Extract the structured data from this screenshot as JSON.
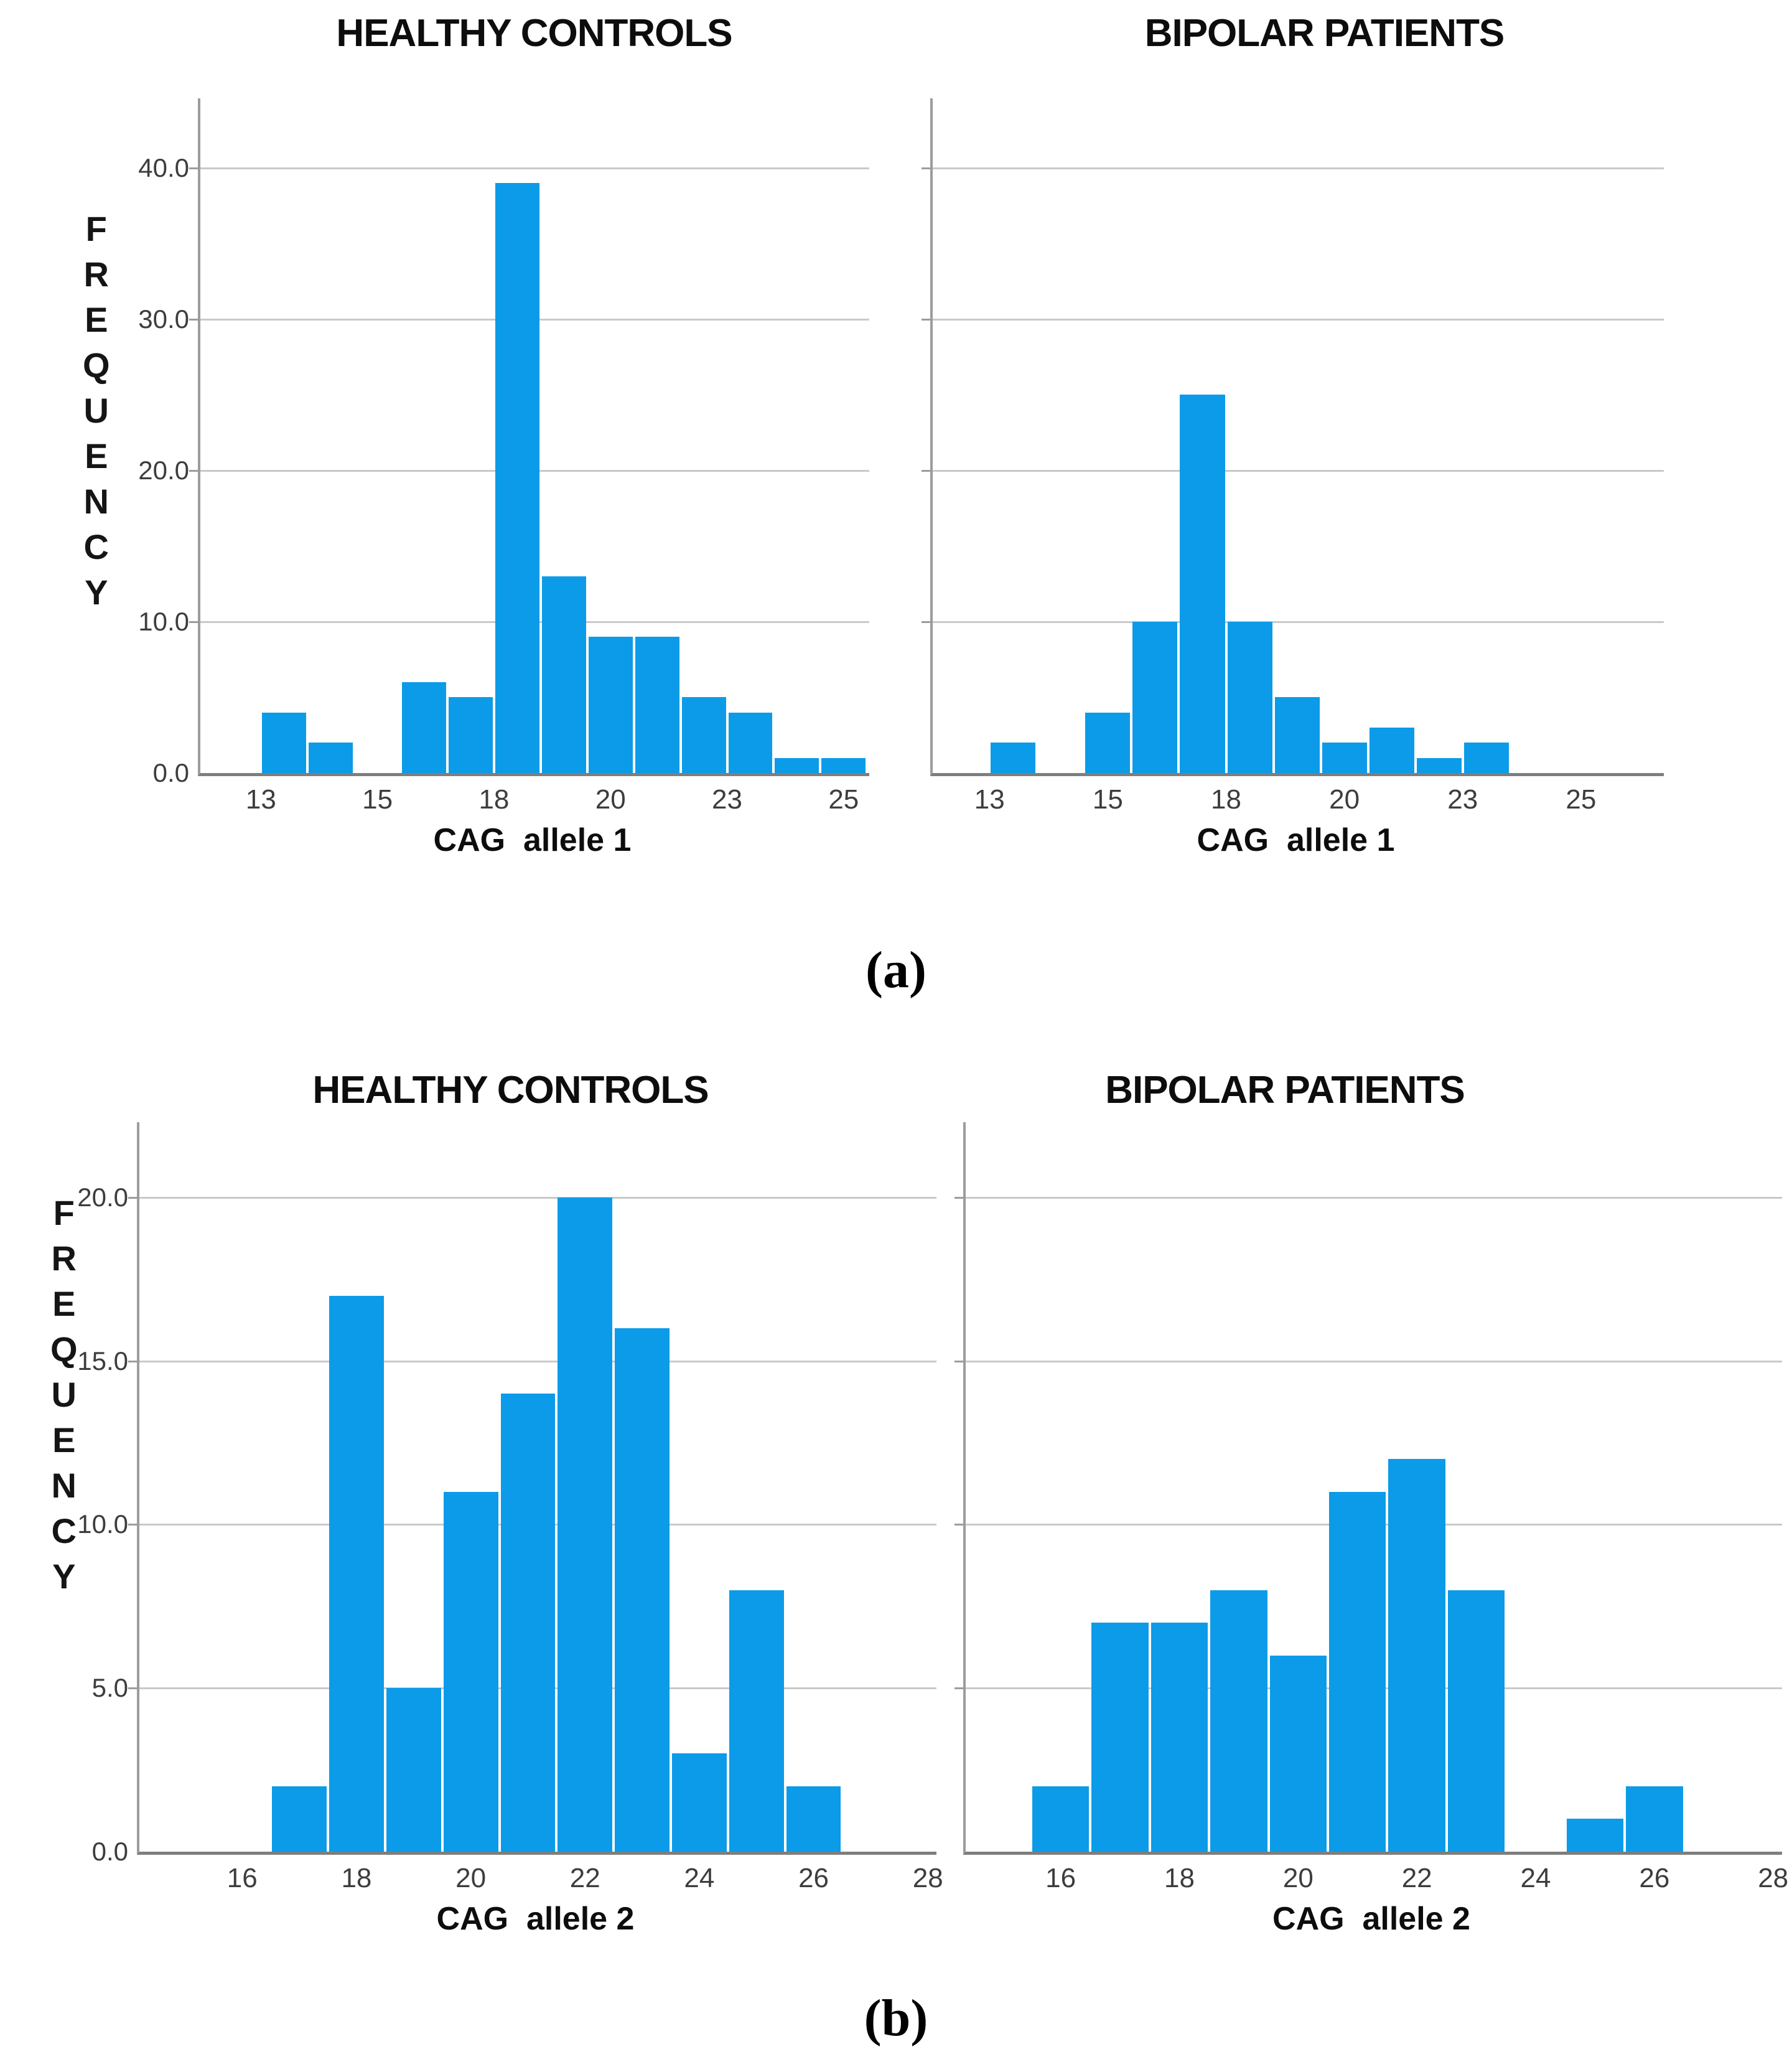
{
  "figure": {
    "captions": [
      "(a)",
      "(b)"
    ],
    "colors": {
      "bar": "#0c9be8",
      "gridline": "#c9c9c9",
      "axis": "#9c9c9c",
      "baseline": "#7e7e7e",
      "tick_text": "#3d3d3d",
      "title_text": "#0d0d0d"
    }
  },
  "chart_data": [
    {
      "type": "bar",
      "panel": "a",
      "title": "HEALTHY CONTROLS",
      "xlabel": "CAG  allele 1",
      "ylabel": "FREQUENCY",
      "bin_centers": [
        13,
        14,
        15,
        16,
        17,
        18,
        19,
        20,
        21,
        22,
        23,
        24,
        25
      ],
      "values": [
        4,
        2,
        0,
        6,
        5,
        39,
        13,
        9,
        9,
        5,
        4,
        1,
        1
      ],
      "xlim": [
        11.2,
        25.55
      ],
      "ylim": [
        0,
        44.6
      ],
      "xticks": [
        {
          "v": 12.5,
          "label": "13"
        },
        {
          "v": 15,
          "label": "15"
        },
        {
          "v": 17.5,
          "label": "18"
        },
        {
          "v": 20,
          "label": "20"
        },
        {
          "v": 22.5,
          "label": "23"
        },
        {
          "v": 25,
          "label": "25"
        }
      ],
      "yticks": [
        {
          "v": 0,
          "label": "0.0"
        },
        {
          "v": 10,
          "label": "10.0"
        },
        {
          "v": 20,
          "label": "20.0"
        },
        {
          "v": 30,
          "label": "30.0"
        },
        {
          "v": 40,
          "label": "40.0"
        }
      ],
      "grid": "horizontal",
      "legend": "none"
    },
    {
      "type": "bar",
      "panel": "a",
      "title": "BIPOLAR PATIENTS",
      "xlabel": "CAG  allele 1",
      "bin_centers": [
        13,
        14,
        15,
        16,
        17,
        18,
        19,
        20,
        21,
        22,
        23,
        24,
        25
      ],
      "values": [
        2,
        0,
        4,
        10,
        25,
        10,
        5,
        2,
        3,
        1,
        2,
        0,
        0
      ],
      "xlim": [
        11.3,
        26.75
      ],
      "ylim": [
        0,
        44.6
      ],
      "xticks": [
        {
          "v": 12.5,
          "label": "13"
        },
        {
          "v": 15,
          "label": "15"
        },
        {
          "v": 17.5,
          "label": "18"
        },
        {
          "v": 20,
          "label": "20"
        },
        {
          "v": 22.5,
          "label": "23"
        },
        {
          "v": 25,
          "label": "25"
        }
      ],
      "yticks": [
        {
          "v": 0,
          "label": "0.0"
        },
        {
          "v": 10,
          "label": "10.0"
        },
        {
          "v": 20,
          "label": "20.0"
        },
        {
          "v": 30,
          "label": "30.0"
        },
        {
          "v": 40,
          "label": "40.0"
        }
      ],
      "grid": "horizontal",
      "legend": "none"
    },
    {
      "type": "bar",
      "panel": "b",
      "title": "HEALTHY CONTROLS",
      "xlabel": "CAG  allele 2",
      "ylabel": "FREQUENCY",
      "bin_centers": [
        16,
        17,
        18,
        19,
        20,
        21,
        22,
        23,
        24,
        25,
        26
      ],
      "values": [
        0,
        2,
        17,
        5,
        11,
        14,
        20,
        16,
        3,
        8,
        2
      ],
      "xlim": [
        14.2,
        28.15
      ],
      "ylim": [
        0,
        22.3
      ],
      "xticks": [
        {
          "v": 16,
          "label": "16"
        },
        {
          "v": 18,
          "label": "18"
        },
        {
          "v": 20,
          "label": "20"
        },
        {
          "v": 22,
          "label": "22"
        },
        {
          "v": 24,
          "label": "24"
        },
        {
          "v": 26,
          "label": "26"
        },
        {
          "v": 28,
          "label": "28"
        }
      ],
      "yticks": [
        {
          "v": 0,
          "label": "0.0"
        },
        {
          "v": 5,
          "label": "5.0"
        },
        {
          "v": 10,
          "label": "10.0"
        },
        {
          "v": 15,
          "label": "15.0"
        },
        {
          "v": 20,
          "label": "20.0"
        }
      ],
      "grid": "horizontal",
      "legend": "none"
    },
    {
      "type": "bar",
      "panel": "b",
      "title": "BIPOLAR PATIENTS",
      "xlabel": "CAG  allele 2",
      "bin_centers": [
        16,
        17,
        18,
        19,
        20,
        21,
        22,
        23,
        24,
        25,
        26
      ],
      "values": [
        2,
        7,
        7,
        8,
        6,
        11,
        12,
        8,
        0,
        1,
        2
      ],
      "xlim": [
        14.4,
        28.15
      ],
      "ylim": [
        0,
        22.3
      ],
      "xticks": [
        {
          "v": 16,
          "label": "16"
        },
        {
          "v": 18,
          "label": "18"
        },
        {
          "v": 20,
          "label": "20"
        },
        {
          "v": 22,
          "label": "22"
        },
        {
          "v": 24,
          "label": "24"
        },
        {
          "v": 26,
          "label": "26"
        },
        {
          "v": 28,
          "label": "28"
        }
      ],
      "yticks": [
        {
          "v": 0,
          "label": "0.0"
        },
        {
          "v": 5,
          "label": "5.0"
        },
        {
          "v": 10,
          "label": "10.0"
        },
        {
          "v": 15,
          "label": "15.0"
        },
        {
          "v": 20,
          "label": "20.0"
        }
      ],
      "grid": "horizontal",
      "legend": "none"
    }
  ]
}
